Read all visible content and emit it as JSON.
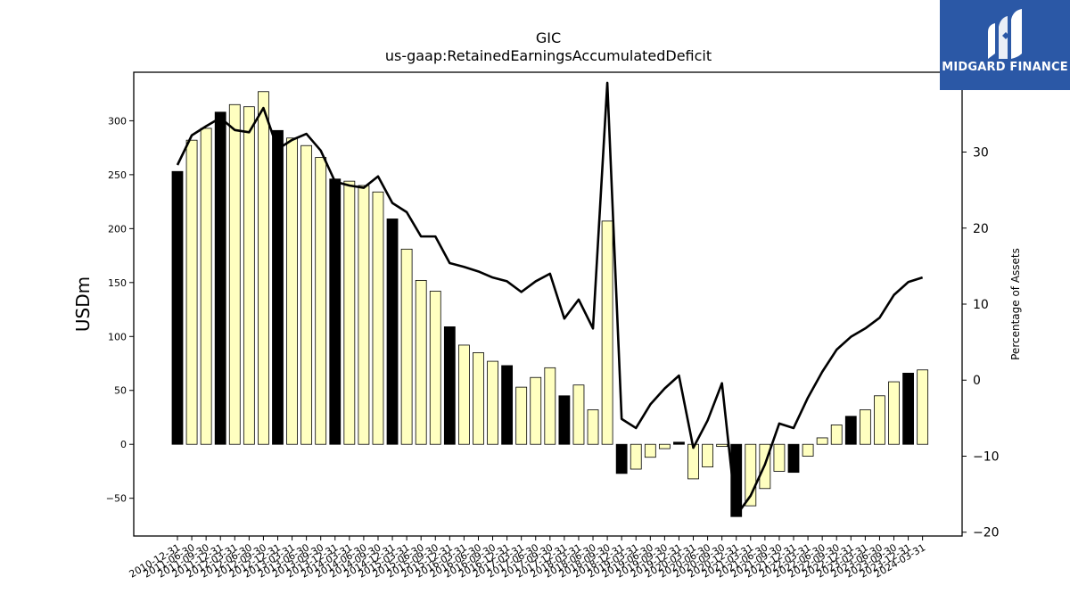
{
  "colors": {
    "annual_bar": "#000000",
    "quarterly_bar": "#ffffc0",
    "bar_edge": "#000000",
    "line": "#000000",
    "logo_bg": "#2b58a6"
  },
  "logo": {
    "text": "MIDGARD FINANCE",
    "icon": "midgard-logo-mark"
  },
  "chart_data": {
    "type": "bar",
    "title": "GIC",
    "subtitle": "us-gaap:RetainedEarningsAccumulatedDeficit",
    "ylabel": "USDm",
    "y2label": "Percentage of Assets",
    "ylim": [
      -85,
      345
    ],
    "y2lim": [
      -20.5,
      40.5
    ],
    "y_ticks": [
      -50,
      0,
      50,
      100,
      150,
      200,
      250,
      300
    ],
    "y2_ticks": [
      -20,
      -10,
      0,
      10,
      20,
      30,
      40
    ],
    "grid": false,
    "categories": [
      "2010-12-31",
      "2011-06-30",
      "2011-09-30",
      "2011-12-31",
      "2012-03-31",
      "2012-06-30",
      "2012-09-30",
      "2012-12-31",
      "2013-03-31",
      "2013-06-30",
      "2013-09-30",
      "2013-12-31",
      "2014-03-31",
      "2014-06-30",
      "2014-09-30",
      "2014-12-31",
      "2015-03-31",
      "2015-06-30",
      "2015-09-30",
      "2015-12-31",
      "2016-03-31",
      "2016-06-30",
      "2016-09-30",
      "2016-12-31",
      "2017-03-31",
      "2017-06-30",
      "2017-09-30",
      "2017-12-31",
      "2018-03-31",
      "2018-06-30",
      "2018-09-30",
      "2018-12-31",
      "2019-03-31",
      "2019-06-30",
      "2019-09-30",
      "2019-12-31",
      "2020-03-31",
      "2020-06-30",
      "2020-09-30",
      "2020-12-31",
      "2021-03-31",
      "2021-06-30",
      "2021-09-30",
      "2021-12-31",
      "2022-03-31",
      "2022-06-30",
      "2022-09-30",
      "2022-12-31",
      "2023-03-31",
      "2023-06-30",
      "2023-09-30",
      "2023-12-31",
      "2024-03-31"
    ],
    "series": [
      {
        "values": [
          253,
          282,
          293,
          308,
          315,
          313,
          327,
          291,
          284,
          277,
          266,
          246,
          244,
          240,
          234,
          209,
          181,
          152,
          142,
          109,
          92,
          85,
          77,
          73,
          53,
          62,
          71,
          45,
          55,
          32,
          207,
          -27,
          -23,
          -12,
          -4,
          2,
          -32,
          -21,
          -2,
          -67,
          -57,
          -41,
          -25,
          -26,
          -11,
          6,
          18,
          26,
          32,
          45,
          58,
          66,
          69
        ],
        "fiscal_year_end": [
          true,
          false,
          false,
          true,
          false,
          false,
          false,
          true,
          false,
          false,
          false,
          true,
          false,
          false,
          false,
          true,
          false,
          false,
          false,
          true,
          false,
          false,
          false,
          true,
          false,
          false,
          false,
          true,
          false,
          false,
          false,
          true,
          false,
          false,
          false,
          true,
          false,
          false,
          false,
          true,
          false,
          false,
          false,
          true,
          false,
          false,
          false,
          true,
          false,
          false,
          false,
          true,
          false
        ]
      },
      {
        "axis": "right",
        "values": [
          28.3,
          32.2,
          33.4,
          34.5,
          32.9,
          32.6,
          35.8,
          30.4,
          31.6,
          32.4,
          30.2,
          26.1,
          25.6,
          25.3,
          26.8,
          23.3,
          22.1,
          18.9,
          18.9,
          15.4,
          14.9,
          14.3,
          13.5,
          13.0,
          11.6,
          13.0,
          14.0,
          8.1,
          10.6,
          6.8,
          39.1,
          -5.1,
          -6.3,
          -3.2,
          -1.1,
          0.6,
          -8.9,
          -5.3,
          -0.4,
          -17.8,
          -15.2,
          -11.1,
          -5.7,
          -6.3,
          -2.3,
          1.1,
          4.0,
          5.7,
          6.8,
          8.2,
          11.2,
          12.9,
          13.5
        ]
      }
    ]
  }
}
